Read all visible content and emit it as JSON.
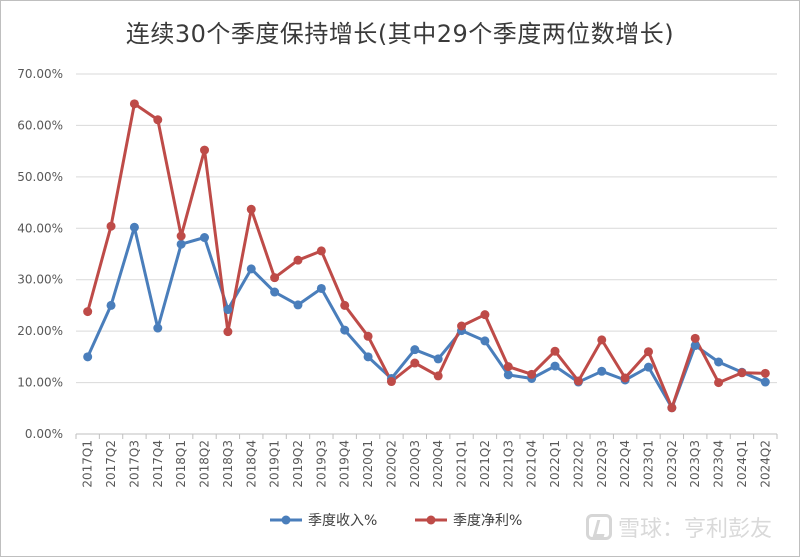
{
  "chart_data": {
    "type": "line",
    "title": "连续30个季度保持增长(其中29个季度两位数增长)",
    "categories": [
      "2017Q1",
      "2017Q2",
      "2017Q3",
      "2017Q4",
      "2018Q1",
      "2018Q2",
      "2018Q3",
      "2018Q4",
      "2019Q1",
      "2019Q2",
      "2019Q3",
      "2019Q4",
      "2020Q1",
      "2020Q2",
      "2020Q3",
      "2020Q4",
      "2021Q1",
      "2021Q2",
      "2021Q3",
      "2021Q4",
      "2022Q1",
      "2022Q2",
      "2022Q3",
      "2022Q4",
      "2023Q1",
      "2023Q2",
      "2023Q3",
      "2023Q4",
      "2024Q1",
      "2024Q2"
    ],
    "y_ticks": [
      "0.00%",
      "10.00%",
      "20.00%",
      "30.00%",
      "40.00%",
      "50.00%",
      "60.00%",
      "70.00%"
    ],
    "ylim": [
      0,
      70
    ],
    "grid": true,
    "legend_position": "bottom",
    "series": [
      {
        "name": "季度收入%",
        "color": "#4a7ebb",
        "values": [
          15.0,
          25.0,
          40.2,
          20.6,
          36.9,
          38.2,
          24.2,
          32.1,
          27.6,
          25.1,
          28.3,
          20.2,
          15.0,
          10.8,
          16.4,
          14.6,
          20.1,
          18.1,
          11.5,
          10.8,
          13.2,
          10.1,
          12.2,
          10.5,
          13.0,
          5.1,
          17.2,
          14.0,
          12.0,
          10.1
        ]
      },
      {
        "name": "季度净利%",
        "color": "#be4b48",
        "values": [
          23.8,
          40.4,
          64.2,
          61.1,
          38.5,
          55.2,
          19.9,
          43.7,
          30.4,
          33.8,
          35.6,
          25.0,
          19.0,
          10.2,
          13.8,
          11.3,
          21.0,
          23.2,
          13.1,
          11.6,
          16.1,
          10.3,
          18.3,
          10.9,
          16.0,
          5.1,
          18.6,
          10.0,
          11.9,
          11.8
        ]
      }
    ]
  },
  "watermark": {
    "text": "雪球：亨利彭友"
  }
}
